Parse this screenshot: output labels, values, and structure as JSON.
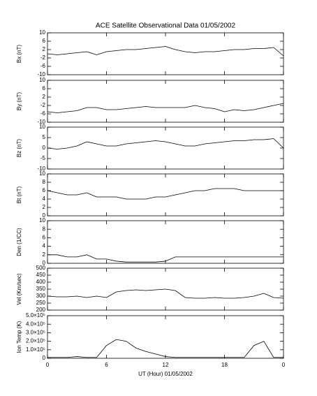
{
  "title": "ACE Satellite Observational Data  01/05/2002",
  "xlabel": "UT (Hour)  01/05/2002",
  "x": [
    0,
    1,
    2,
    3,
    4,
    5,
    6,
    7,
    8,
    9,
    10,
    11,
    12,
    13,
    14,
    15,
    16,
    17,
    18,
    19,
    20,
    21,
    22,
    23,
    24
  ],
  "xlim": [
    0,
    24
  ],
  "xticks": [
    0,
    6,
    12,
    18,
    {
      "value": 24,
      "label": "0"
    }
  ],
  "chart_data": [
    {
      "type": "line",
      "ylabel": "Bx (nT)",
      "color": "#000000",
      "ylim": [
        -10,
        10
      ],
      "yticks": [
        -10,
        -6,
        -2,
        2,
        6,
        10
      ],
      "values": [
        0,
        -0.5,
        0,
        0.5,
        1,
        -0.5,
        1,
        1.5,
        2,
        2,
        2.5,
        3,
        3.5,
        2,
        1,
        0.5,
        1,
        1,
        1.5,
        2,
        2,
        2.5,
        2.5,
        3,
        -1
      ]
    },
    {
      "type": "line",
      "ylabel": "By (nT)",
      "color": "#000000",
      "ylim": [
        -10,
        10
      ],
      "yticks": [
        -10,
        -6,
        -2,
        2,
        6,
        10
      ],
      "values": [
        -5,
        -5.5,
        -5,
        -4.5,
        -3,
        -3,
        -4,
        -4,
        -3.5,
        -3,
        -2.5,
        -3,
        -3,
        -3,
        -3,
        -2,
        -3,
        -3.5,
        -5,
        -4,
        -4.5,
        -4,
        -3,
        -2,
        -1
      ]
    },
    {
      "type": "line",
      "ylabel": "Bz (nT)",
      "color": "#000000",
      "ylim": [
        -10,
        10
      ],
      "yticks": [
        -10,
        -5,
        0,
        5,
        10
      ],
      "values": [
        0,
        -0.5,
        0,
        1,
        3,
        2,
        1,
        1,
        2,
        2.5,
        3,
        3.5,
        3,
        2,
        1,
        1,
        2,
        2.5,
        3,
        3.5,
        3.5,
        4,
        4,
        4.5,
        0
      ]
    },
    {
      "type": "line",
      "ylabel": "Bt (nT)",
      "color": "#000000",
      "ylim": [
        0,
        10
      ],
      "yticks": [
        0,
        2,
        4,
        6,
        8,
        10
      ],
      "values": [
        6,
        5.5,
        5,
        5,
        5.5,
        4.5,
        4.5,
        4.5,
        4,
        4,
        4,
        4.5,
        4.5,
        5,
        5.5,
        6,
        6,
        6.5,
        6.5,
        6.5,
        6,
        6,
        6,
        6,
        6
      ]
    },
    {
      "type": "line",
      "ylabel": "Den (1/CC)",
      "color": "#000000",
      "ylim": [
        0,
        10
      ],
      "yticks": [
        0,
        2,
        4,
        6,
        8,
        10
      ],
      "values": [
        2,
        2,
        1.5,
        1.5,
        2,
        1,
        1,
        0.5,
        0.3,
        0.3,
        0.3,
        0.3,
        0.5,
        1.5,
        1.5,
        1.5,
        1.5,
        1.5,
        1.5,
        1.5,
        1.5,
        1.5,
        1.5,
        1.5,
        1.5
      ]
    },
    {
      "type": "line",
      "ylabel": "Vel (Km/sec)",
      "color": "#000000",
      "ylim": [
        200,
        500
      ],
      "yticks": [
        200,
        250,
        300,
        350,
        400,
        450,
        500
      ],
      "values": [
        300,
        295,
        295,
        300,
        290,
        300,
        290,
        330,
        340,
        345,
        340,
        345,
        350,
        340,
        290,
        285,
        285,
        290,
        285,
        285,
        290,
        300,
        320,
        290,
        285
      ]
    },
    {
      "type": "line",
      "ylabel": "Ion Temp (K)",
      "color": "#000000",
      "ylim": [
        0,
        500000
      ],
      "yticks": [
        0,
        {
          "value": 100000,
          "label": "1.0×10⁵"
        },
        {
          "value": 200000,
          "label": "2.0×10⁵"
        },
        {
          "value": 300000,
          "label": "3.0×10⁵"
        },
        {
          "value": 400000,
          "label": "4.0×10⁵"
        },
        {
          "value": 500000,
          "label": "5.0×10⁵"
        }
      ],
      "values": [
        10000,
        10000,
        10000,
        20000,
        10000,
        10000,
        150000,
        220000,
        200000,
        120000,
        80000,
        50000,
        20000,
        10000,
        10000,
        10000,
        10000,
        10000,
        10000,
        10000,
        10000,
        150000,
        200000,
        10000,
        10000
      ]
    }
  ]
}
